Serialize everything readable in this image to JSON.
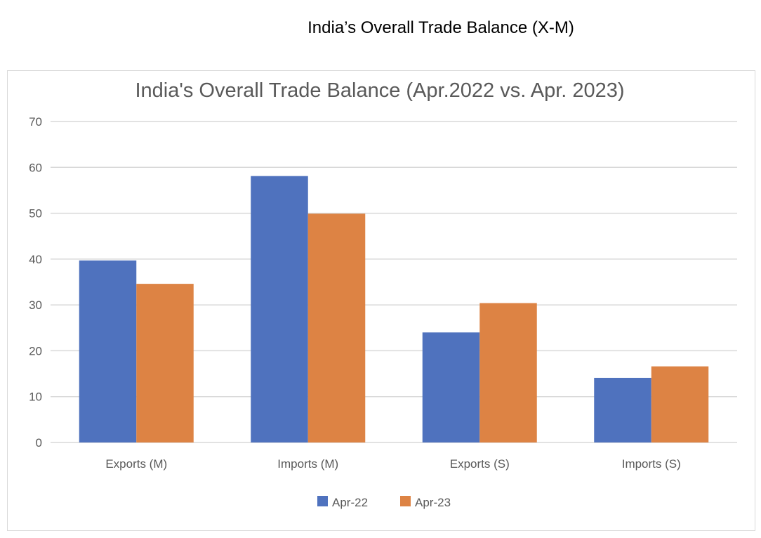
{
  "page_title": "India’s Overall Trade Balance (X-M)",
  "chart_data": {
    "type": "bar",
    "title": "India's Overall Trade Balance (Apr.2022 vs. Apr. 2023)",
    "xlabel": "",
    "ylabel": "",
    "ylim": [
      0,
      70
    ],
    "yticks": [
      0,
      10,
      20,
      30,
      40,
      50,
      60,
      70
    ],
    "grid": true,
    "legend_position": "bottom",
    "categories": [
      "Exports (M)",
      "Imports (M)",
      "Exports (S)",
      "Imports (S)"
    ],
    "series": [
      {
        "name": "Apr-22",
        "color": "#4f72be",
        "values": [
          39.7,
          58.1,
          24.0,
          14.1
        ]
      },
      {
        "name": "Apr-23",
        "color": "#dd8344",
        "values": [
          34.6,
          49.9,
          30.4,
          16.6
        ]
      }
    ]
  }
}
